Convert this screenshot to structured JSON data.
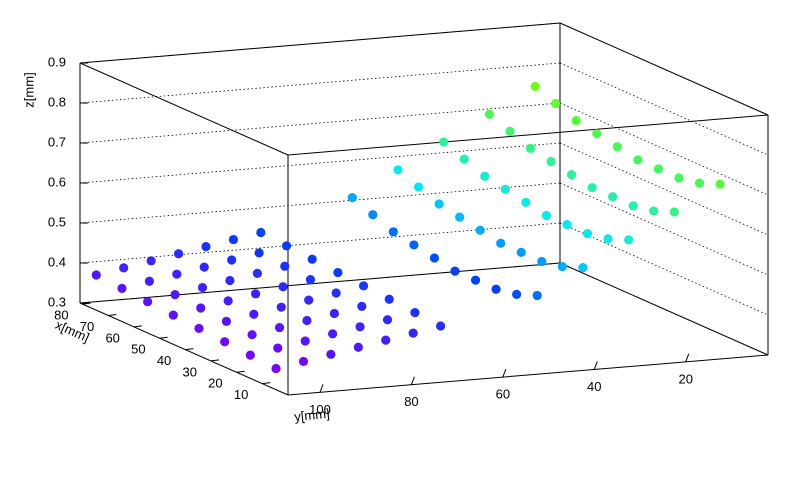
{
  "chart_data": {
    "type": "scatter3d",
    "x_label": "x[mm]",
    "y_label": "y[mm]",
    "z_label": "z[mm]",
    "xlim": [
      0,
      81
    ],
    "ylim": [
      2,
      107
    ],
    "zlim": [
      0.3,
      0.9
    ],
    "xticks": [
      10,
      20,
      30,
      40,
      50,
      60,
      70,
      80
    ],
    "yticks": [
      20,
      40,
      60,
      80,
      100
    ],
    "zticks": [
      0.3,
      0.4,
      0.5,
      0.6,
      0.7,
      0.8,
      0.9
    ],
    "grid": true,
    "palette": [
      {
        "z": 0.33,
        "color": "#8000ff"
      },
      {
        "z": 0.44,
        "color": "#0040ff"
      },
      {
        "z": 0.55,
        "color": "#00e8ff"
      },
      {
        "z": 0.76,
        "color": "#70ff00"
      }
    ],
    "points": {
      "x": [
        80,
        70,
        60,
        50,
        40,
        30,
        20,
        10,
        80,
        70,
        60,
        50,
        40,
        30,
        20,
        10,
        80,
        70,
        60,
        50,
        40,
        30,
        20,
        10,
        80,
        70,
        60,
        50,
        40,
        30,
        20,
        10,
        80,
        70,
        60,
        50,
        40,
        30,
        20,
        10,
        80,
        70,
        60,
        50,
        40,
        30,
        20,
        10,
        80,
        70,
        60,
        50,
        40,
        30,
        20,
        10,
        80,
        72,
        64,
        56,
        48,
        40,
        32,
        24,
        16,
        8,
        80,
        72,
        64,
        56,
        48,
        40,
        32,
        24,
        16,
        8,
        80,
        72,
        64,
        56,
        48,
        40,
        32,
        24,
        16,
        8,
        80,
        72,
        64,
        56,
        48,
        40,
        32,
        24,
        16,
        8,
        80,
        72,
        64,
        56,
        48,
        40,
        32,
        24,
        16,
        8
      ],
      "y": [
        104,
        104,
        104,
        104,
        104,
        104,
        104,
        104,
        98,
        98,
        98,
        98,
        98,
        98,
        98,
        98,
        92,
        92,
        92,
        92,
        92,
        92,
        92,
        92,
        86,
        86,
        86,
        86,
        86,
        86,
        86,
        86,
        80,
        80,
        80,
        80,
        80,
        80,
        80,
        80,
        74,
        74,
        74,
        74,
        74,
        74,
        74,
        74,
        68,
        68,
        68,
        68,
        68,
        68,
        68,
        68,
        8,
        8,
        8,
        8,
        8,
        8,
        8,
        8,
        8,
        8,
        18,
        18,
        18,
        18,
        18,
        18,
        18,
        18,
        18,
        18,
        28,
        28,
        28,
        28,
        28,
        28,
        28,
        28,
        28,
        28,
        38,
        38,
        38,
        38,
        38,
        38,
        38,
        38,
        38,
        38,
        48,
        48,
        48,
        48,
        48,
        48,
        48,
        48,
        48,
        48
      ],
      "z": [
        0.37,
        0.365,
        0.36,
        0.355,
        0.35,
        0.345,
        0.34,
        0.335,
        0.382,
        0.377,
        0.372,
        0.367,
        0.362,
        0.357,
        0.352,
        0.347,
        0.394,
        0.389,
        0.384,
        0.379,
        0.374,
        0.369,
        0.364,
        0.359,
        0.406,
        0.401,
        0.396,
        0.391,
        0.386,
        0.381,
        0.376,
        0.371,
        0.418,
        0.413,
        0.408,
        0.403,
        0.398,
        0.393,
        0.388,
        0.383,
        0.43,
        0.425,
        0.42,
        0.415,
        0.41,
        0.405,
        0.4,
        0.395,
        0.442,
        0.437,
        0.432,
        0.427,
        0.422,
        0.417,
        0.412,
        0.407,
        0.75,
        0.73,
        0.71,
        0.7,
        0.69,
        0.68,
        0.68,
        0.68,
        0.69,
        0.71,
        0.69,
        0.67,
        0.65,
        0.64,
        0.63,
        0.62,
        0.62,
        0.62,
        0.63,
        0.65,
        0.63,
        0.61,
        0.59,
        0.58,
        0.57,
        0.56,
        0.56,
        0.56,
        0.57,
        0.59,
        0.57,
        0.55,
        0.53,
        0.52,
        0.51,
        0.5,
        0.5,
        0.5,
        0.51,
        0.53,
        0.51,
        0.49,
        0.47,
        0.46,
        0.45,
        0.44,
        0.44,
        0.44,
        0.45,
        0.47
      ]
    }
  }
}
